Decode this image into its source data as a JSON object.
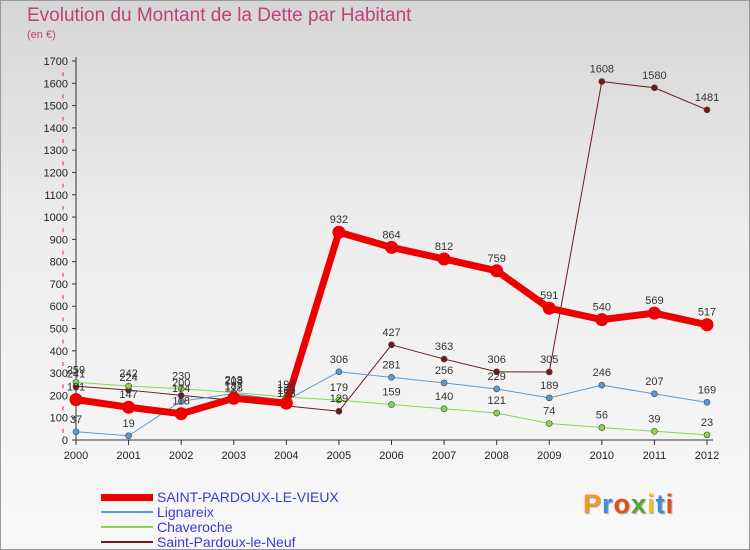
{
  "title": "Evolution du Montant de la Dette par Habitant",
  "subtitle": "(en €)",
  "brand": {
    "text": "Proxiti",
    "letters": [
      {
        "ch": "P",
        "color": "#f29a1e"
      },
      {
        "ch": "r",
        "color": "#3c8fd6"
      },
      {
        "ch": "o",
        "color": "#e84a1c"
      },
      {
        "ch": "x",
        "color": "#5aa62e"
      },
      {
        "ch": "i",
        "color": "#f2c21a"
      },
      {
        "ch": "t",
        "color": "#3c8fd6"
      },
      {
        "ch": "i",
        "color": "#e84a1c"
      }
    ]
  },
  "chart_data": {
    "type": "line",
    "title": "Evolution du Montant de la Dette par Habitant",
    "subtitle": "(en €)",
    "xlabel": "",
    "ylabel": "",
    "x": [
      "2000",
      "2001",
      "2002",
      "2003",
      "2004",
      "2005",
      "2006",
      "2007",
      "2008",
      "2009",
      "2010",
      "2011",
      "2012"
    ],
    "ylim": [
      0,
      1700
    ],
    "yticks": [
      0,
      100,
      200,
      300,
      400,
      500,
      600,
      700,
      800,
      900,
      1000,
      1100,
      1200,
      1300,
      1400,
      1500,
      1600,
      1700
    ],
    "grid": false,
    "legend_position": "bottom",
    "series": [
      {
        "name": "Saint-Pardoux-le-Neuf",
        "color": "#6e1a1a",
        "width": 1,
        "values": [
          241,
          224,
          200,
          178,
          153,
          129,
          427,
          363,
          306,
          305,
          1608,
          1580,
          1481
        ],
        "labels": [
          "241",
          "224",
          "200",
          "178",
          "153",
          "129",
          "427",
          "363",
          "306",
          "305",
          "1608",
          "1580",
          "1481"
        ]
      },
      {
        "name": "Chaveroche",
        "color": "#88d64a",
        "width": 1,
        "values": [
          259,
          242,
          230,
          213,
          193,
          179,
          159,
          140,
          121,
          74,
          56,
          39,
          23
        ],
        "labels": [
          "259",
          "242",
          "230",
          "213",
          "193",
          "179",
          "159",
          "140",
          "121",
          "74",
          "56",
          "39",
          "23"
        ]
      },
      {
        "name": "Lignareix",
        "color": "#5b9ad0",
        "width": 1,
        "values": [
          37,
          19,
          174,
          208,
          178,
          306,
          281,
          256,
          229,
          189,
          246,
          207,
          169
        ],
        "labels": [
          "37",
          "19",
          "174",
          "208",
          "178",
          "306",
          "281",
          "256",
          "229",
          "189",
          "246",
          "207",
          "169"
        ]
      },
      {
        "name": "SAINT-PARDOUX-LE-VIEUX",
        "color": "#ee0000",
        "width": 7,
        "values": [
          181,
          147,
          118,
          187,
          165,
          932,
          864,
          812,
          759,
          591,
          540,
          569,
          517
        ],
        "labels": [
          "181",
          "147",
          "118",
          "187",
          "165",
          "932",
          "864",
          "812",
          "759",
          "591",
          "540",
          "569",
          "517"
        ]
      }
    ]
  },
  "legend": [
    {
      "label": "SAINT-PARDOUX-LE-VIEUX",
      "color": "#ee0000",
      "thickness": 7
    },
    {
      "label": "Lignareix",
      "color": "#5b9ad0",
      "thickness": 2
    },
    {
      "label": "Chaveroche",
      "color": "#88d64a",
      "thickness": 2
    },
    {
      "label": "Saint-Pardoux-le-Neuf",
      "color": "#6e1a1a",
      "thickness": 2
    }
  ]
}
